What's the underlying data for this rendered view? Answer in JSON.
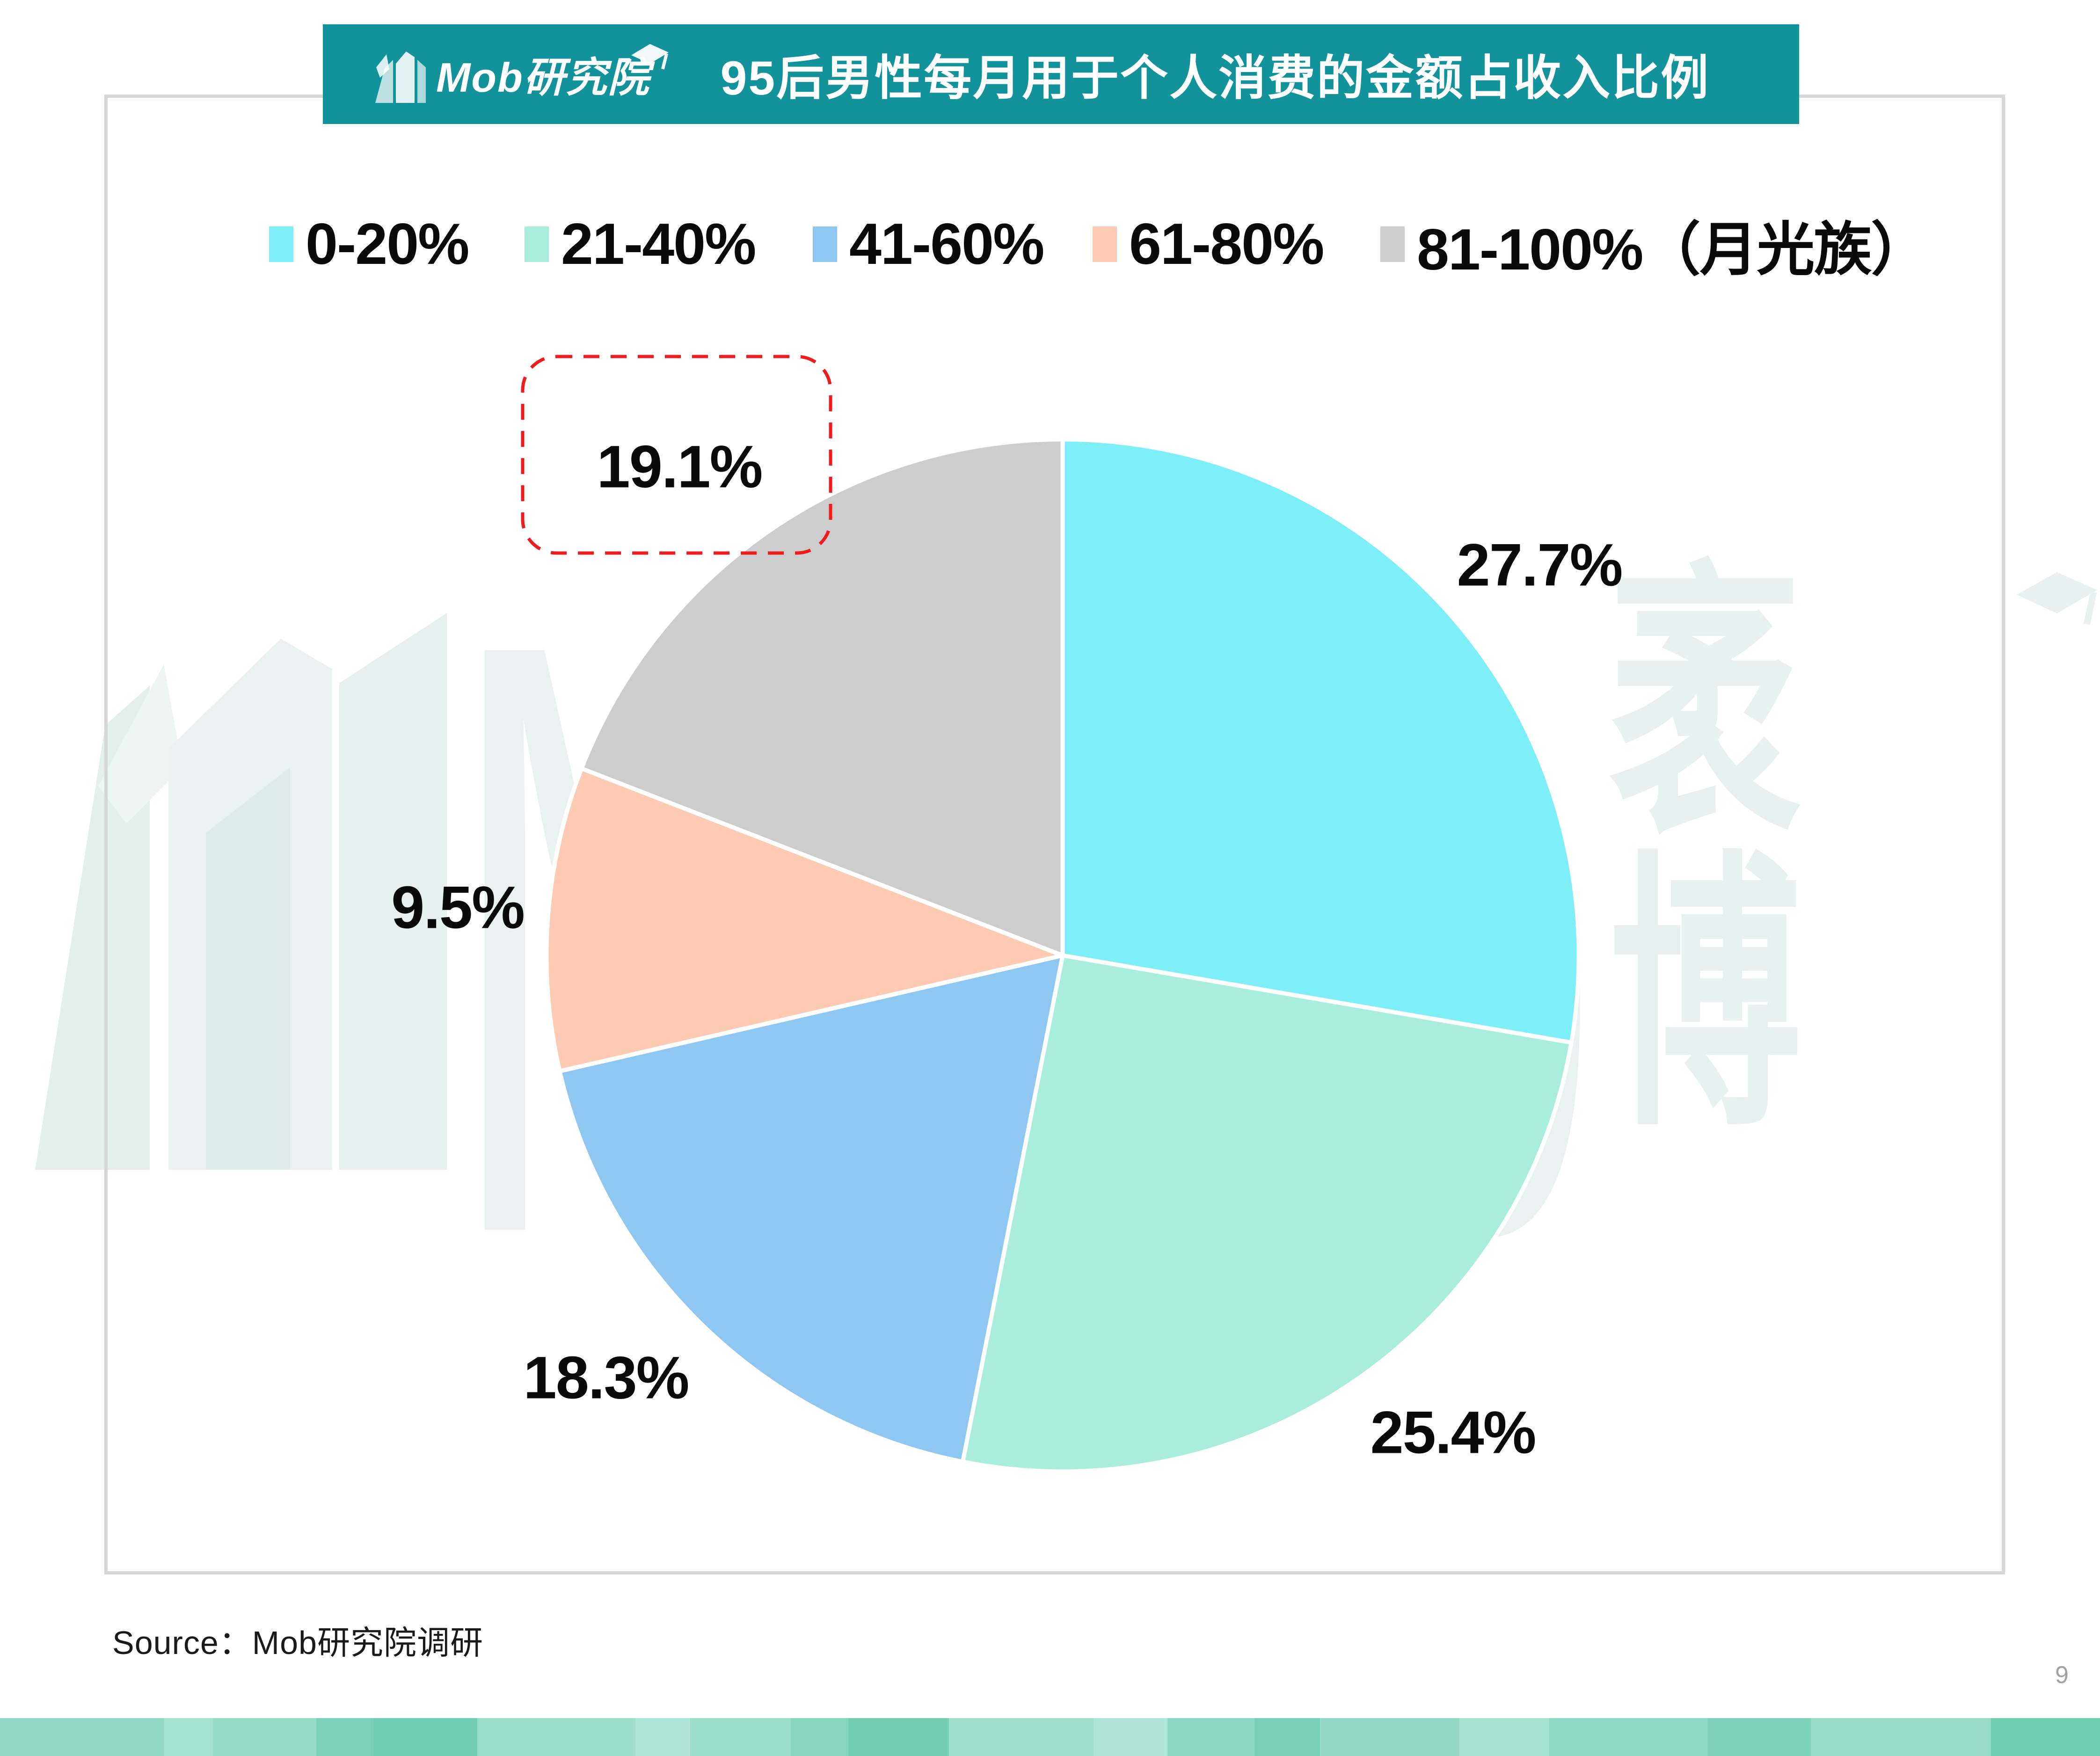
{
  "header": {
    "logo_text": "Mob研究院",
    "title": "95后男性每月用于个人消费的金额占收入比例"
  },
  "chart_data": {
    "type": "pie",
    "title": "95后男性每月用于个人消费的金额占收入比例",
    "categories": [
      "0-20%",
      "21-40%",
      "41-60%",
      "61-80%",
      "81-100%（月光族）"
    ],
    "values": [
      27.7,
      25.4,
      18.3,
      9.5,
      19.1
    ],
    "labels": [
      "27.7%",
      "25.4%",
      "18.3%",
      "9.5%",
      "19.1%"
    ],
    "colors": [
      "#7EEFF8",
      "#A9EEDC",
      "#8DC7F2",
      "#FDCBB4",
      "#CDCDCD"
    ],
    "unit": "%",
    "start_angle_deg": 0,
    "direction": "clockwise",
    "legend_position": "top",
    "highlight": {
      "category": "81-100%（月光族）",
      "label": "19.1%",
      "style": "red-dashed-rounded-box"
    }
  },
  "watermark": {
    "left_letter": "M",
    "right_letter": "b",
    "cjk_text": "袤博"
  },
  "footer": {
    "source_label": "Source：Mob研究院调研",
    "page_number": "9"
  },
  "theme": {
    "banner_bg": "#12929B",
    "banner_text": "#FFFFFF",
    "highlight_red": "#EE1C1C",
    "frame_border": "#D6D6D6",
    "watermark_color": "#E9F2F0",
    "label_color": "#0B0B0B",
    "page_number_color": "#A2A2A2",
    "strip_bands": [
      [
        3.0,
        "#92DAC5"
      ],
      [
        0.9,
        "#A5E1CF"
      ],
      [
        1.9,
        "#95DCC7"
      ],
      [
        1.05,
        "#7BD1B7"
      ],
      [
        1.9,
        "#70CDB1"
      ],
      [
        2.9,
        "#9BDECA"
      ],
      [
        1.0,
        "#AEE4D5"
      ],
      [
        1.85,
        "#9ADDC8"
      ],
      [
        1.05,
        "#85D5BD"
      ],
      [
        1.85,
        "#74CEB2"
      ],
      [
        2.65,
        "#A0DFCC"
      ],
      [
        1.35,
        "#B0E4D6"
      ],
      [
        1.6,
        "#8BD7C1"
      ],
      [
        1.2,
        "#79D0B6"
      ],
      [
        2.55,
        "#92DAC5"
      ],
      [
        1.65,
        "#A7E1D0"
      ],
      [
        2.9,
        "#8ED9C3"
      ],
      [
        1.9,
        "#7ED2B9"
      ],
      [
        3.3,
        "#98DCC8"
      ],
      [
        2.0,
        "#6FCDB0"
      ]
    ]
  }
}
